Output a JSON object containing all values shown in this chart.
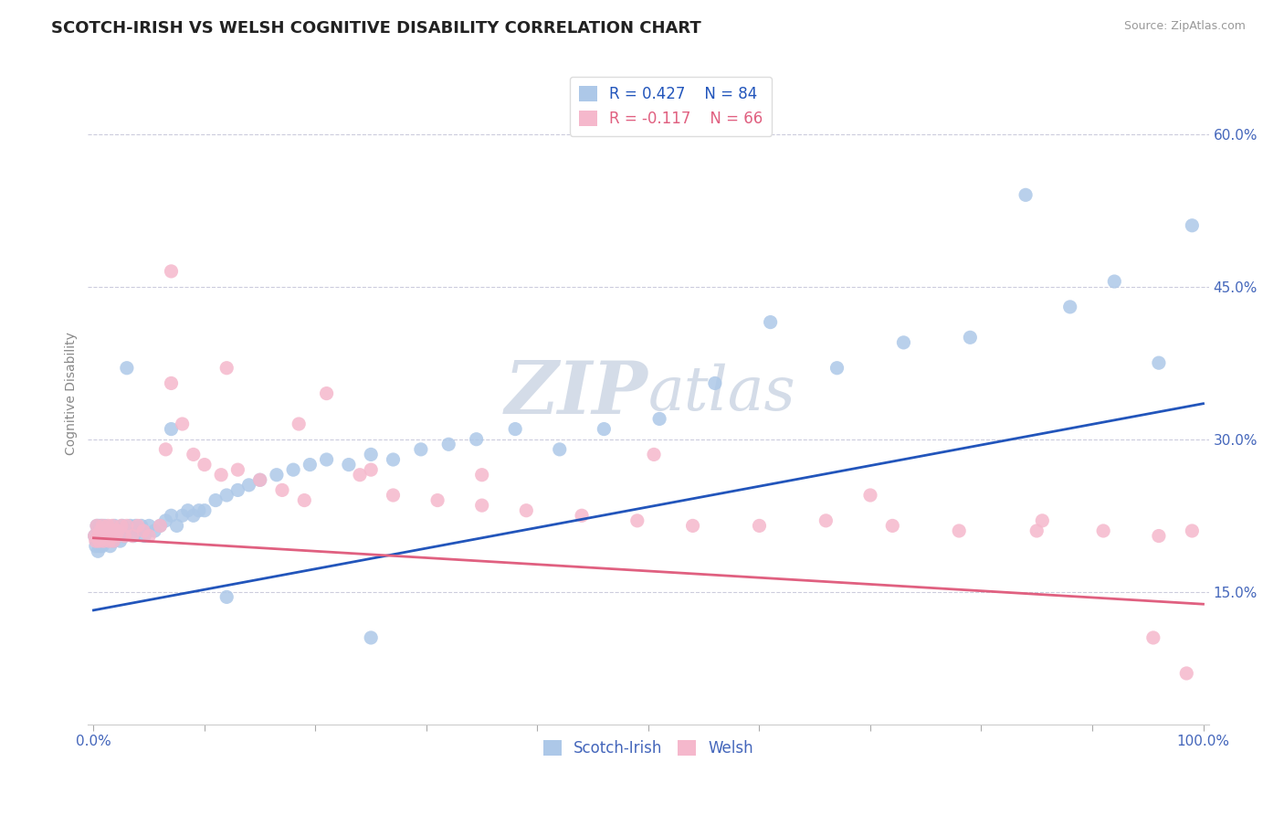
{
  "title": "SCOTCH-IRISH VS WELSH COGNITIVE DISABILITY CORRELATION CHART",
  "source_text": "Source: ZipAtlas.com",
  "ylabel": "Cognitive Disability",
  "xlim": [
    -0.005,
    1.005
  ],
  "ylim": [
    0.02,
    0.67
  ],
  "xticks": [
    0.0,
    0.1,
    0.2,
    0.3,
    0.4,
    0.5,
    0.6,
    0.7,
    0.8,
    0.9,
    1.0
  ],
  "xticklabels": [
    "0.0%",
    "",
    "",
    "",
    "",
    "",
    "",
    "",
    "",
    "",
    "100.0%"
  ],
  "yticks": [
    0.15,
    0.3,
    0.45,
    0.6
  ],
  "yticklabels": [
    "15.0%",
    "30.0%",
    "45.0%",
    "60.0%"
  ],
  "scotch_irish_color": "#adc8e8",
  "welsh_color": "#f5b8cc",
  "scotch_irish_line_color": "#2255bb",
  "welsh_line_color": "#e06080",
  "scotch_irish_R": 0.427,
  "scotch_irish_N": 84,
  "welsh_R": -0.117,
  "welsh_N": 66,
  "background_color": "#ffffff",
  "grid_color": "#ccccdd",
  "title_fontsize": 13,
  "axis_label_fontsize": 10,
  "tick_fontsize": 11,
  "legend_fontsize": 12,
  "watermark_color": "#d4dce8",
  "si_line_x0": 0.0,
  "si_line_y0": 0.132,
  "si_line_x1": 1.0,
  "si_line_y1": 0.335,
  "w_line_x0": 0.0,
  "w_line_y0": 0.203,
  "w_line_x1": 1.0,
  "w_line_y1": 0.138,
  "scotch_irish_x": [
    0.001,
    0.002,
    0.003,
    0.003,
    0.004,
    0.004,
    0.005,
    0.005,
    0.006,
    0.006,
    0.007,
    0.007,
    0.008,
    0.008,
    0.009,
    0.009,
    0.01,
    0.01,
    0.011,
    0.011,
    0.012,
    0.013,
    0.014,
    0.015,
    0.016,
    0.017,
    0.018,
    0.019,
    0.02,
    0.022,
    0.024,
    0.026,
    0.028,
    0.03,
    0.033,
    0.036,
    0.038,
    0.04,
    0.043,
    0.046,
    0.05,
    0.055,
    0.06,
    0.065,
    0.07,
    0.075,
    0.08,
    0.085,
    0.09,
    0.095,
    0.1,
    0.11,
    0.12,
    0.13,
    0.14,
    0.15,
    0.165,
    0.18,
    0.195,
    0.21,
    0.23,
    0.25,
    0.27,
    0.295,
    0.32,
    0.345,
    0.38,
    0.42,
    0.46,
    0.51,
    0.56,
    0.61,
    0.67,
    0.73,
    0.79,
    0.84,
    0.88,
    0.92,
    0.96,
    0.99,
    0.03,
    0.07,
    0.12,
    0.25
  ],
  "scotch_irish_y": [
    0.205,
    0.195,
    0.215,
    0.2,
    0.19,
    0.21,
    0.205,
    0.215,
    0.195,
    0.21,
    0.2,
    0.215,
    0.205,
    0.195,
    0.21,
    0.2,
    0.205,
    0.215,
    0.2,
    0.21,
    0.205,
    0.2,
    0.21,
    0.195,
    0.205,
    0.21,
    0.2,
    0.215,
    0.205,
    0.21,
    0.2,
    0.215,
    0.205,
    0.21,
    0.215,
    0.205,
    0.215,
    0.21,
    0.215,
    0.205,
    0.215,
    0.21,
    0.215,
    0.22,
    0.225,
    0.215,
    0.225,
    0.23,
    0.225,
    0.23,
    0.23,
    0.24,
    0.245,
    0.25,
    0.255,
    0.26,
    0.265,
    0.27,
    0.275,
    0.28,
    0.275,
    0.285,
    0.28,
    0.29,
    0.295,
    0.3,
    0.31,
    0.29,
    0.31,
    0.32,
    0.355,
    0.415,
    0.37,
    0.395,
    0.4,
    0.54,
    0.43,
    0.455,
    0.375,
    0.51,
    0.37,
    0.31,
    0.145,
    0.105
  ],
  "welsh_x": [
    0.001,
    0.002,
    0.003,
    0.004,
    0.005,
    0.006,
    0.007,
    0.008,
    0.009,
    0.01,
    0.011,
    0.012,
    0.013,
    0.014,
    0.015,
    0.016,
    0.017,
    0.018,
    0.019,
    0.02,
    0.022,
    0.025,
    0.028,
    0.03,
    0.035,
    0.04,
    0.045,
    0.05,
    0.06,
    0.07,
    0.08,
    0.09,
    0.1,
    0.115,
    0.13,
    0.15,
    0.17,
    0.19,
    0.21,
    0.24,
    0.27,
    0.31,
    0.35,
    0.39,
    0.44,
    0.49,
    0.54,
    0.6,
    0.66,
    0.72,
    0.78,
    0.85,
    0.91,
    0.96,
    0.99,
    0.07,
    0.12,
    0.185,
    0.25,
    0.35,
    0.505,
    0.7,
    0.855,
    0.955,
    0.985,
    0.065
  ],
  "welsh_y": [
    0.205,
    0.2,
    0.215,
    0.205,
    0.2,
    0.21,
    0.205,
    0.215,
    0.2,
    0.205,
    0.21,
    0.205,
    0.215,
    0.2,
    0.21,
    0.205,
    0.215,
    0.2,
    0.21,
    0.205,
    0.21,
    0.215,
    0.205,
    0.215,
    0.205,
    0.215,
    0.21,
    0.205,
    0.215,
    0.355,
    0.315,
    0.285,
    0.275,
    0.265,
    0.27,
    0.26,
    0.25,
    0.24,
    0.345,
    0.265,
    0.245,
    0.24,
    0.235,
    0.23,
    0.225,
    0.22,
    0.215,
    0.215,
    0.22,
    0.215,
    0.21,
    0.21,
    0.21,
    0.205,
    0.21,
    0.465,
    0.37,
    0.315,
    0.27,
    0.265,
    0.285,
    0.245,
    0.22,
    0.105,
    0.07,
    0.29
  ]
}
